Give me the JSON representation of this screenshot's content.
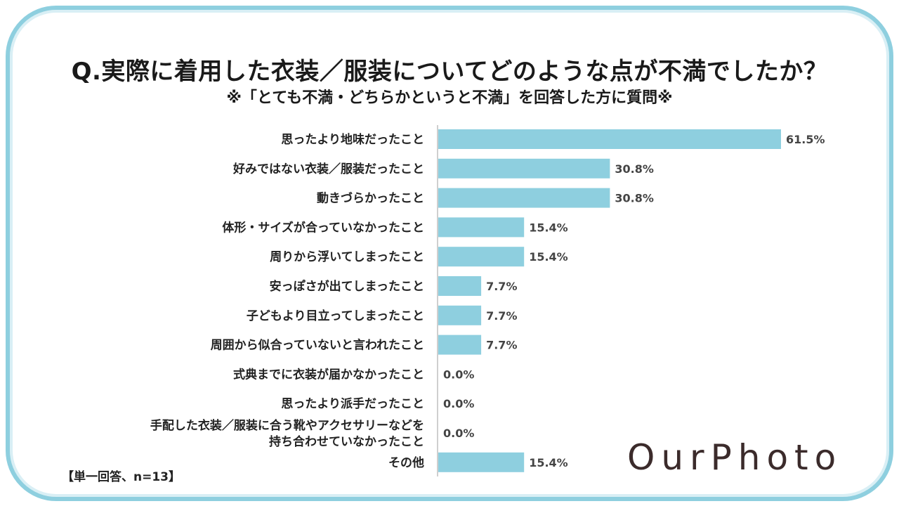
{
  "header": {
    "title": "Q.実際に着用した衣装／服装についてどのような点が不満でしたか？",
    "subtitle": "※「とても不満・どちらかというと不満」を回答した方に質問※"
  },
  "footer": {
    "note": "【単一回答、n=13】",
    "logo": "OurPhoto"
  },
  "colors": {
    "bar": "#8ecfdf",
    "frame": "#8ecfdf",
    "axis": "#bfbfbf"
  },
  "chart_data": {
    "type": "bar",
    "orientation": "horizontal",
    "categories": [
      [
        "思ったより地味だったこと"
      ],
      [
        "好みではない衣装／服装だったこと"
      ],
      [
        "動きづらかったこと"
      ],
      [
        "体形・サイズが合っていなかったこと"
      ],
      [
        "周りから浮いてしまったこと"
      ],
      [
        "安っぽさが出てしまったこと"
      ],
      [
        "子どもより目立ってしまったこと"
      ],
      [
        "周囲から似合っていないと言われたこと"
      ],
      [
        "式典までに衣装が届かなかったこと"
      ],
      [
        "思ったより派手だったこと"
      ],
      [
        "手配した衣装／服装に合う靴やアクセサリーなどを",
        "持ち合わせていなかったこと"
      ],
      [
        "その他"
      ]
    ],
    "values": [
      61.5,
      30.8,
      30.8,
      15.4,
      15.4,
      7.7,
      7.7,
      7.7,
      0.0,
      0.0,
      0.0,
      15.4
    ],
    "value_labels": [
      "61.5%",
      "30.8%",
      "30.8%",
      "15.4%",
      "15.4%",
      "7.7%",
      "7.7%",
      "7.7%",
      "0.0%",
      "0.0%",
      "0.0%",
      "15.4%"
    ],
    "xlim": [
      0,
      100
    ],
    "grid": false,
    "legend": false
  }
}
